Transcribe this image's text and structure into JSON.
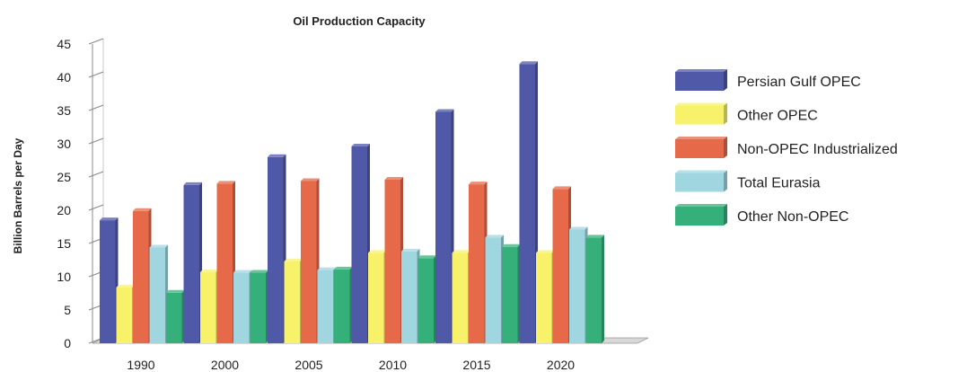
{
  "chart_data": {
    "type": "bar",
    "title": "Oil Production Capacity",
    "xlabel": "",
    "ylabel": "Billion Barrels per Day",
    "categories": [
      "1990",
      "2000",
      "2005",
      "2010",
      "2015",
      "2020"
    ],
    "ylim": [
      0,
      45
    ],
    "yticks": [
      "0",
      "5",
      "10",
      "15",
      "20",
      "25",
      "30",
      "35",
      "40",
      "45"
    ],
    "grid": false,
    "legend_position": "right",
    "series": [
      {
        "name": "Persian Gulf OPEC",
        "color": "#5058a8",
        "values": [
          18.5,
          23.8,
          28.0,
          29.6,
          34.8,
          42.0
        ]
      },
      {
        "name": "Other OPEC",
        "color": "#f7f26a",
        "values": [
          8.4,
          10.7,
          12.3,
          13.6,
          13.6,
          13.6
        ]
      },
      {
        "name": "Non-OPEC Industrialized",
        "color": "#e6694a",
        "values": [
          19.9,
          24.0,
          24.4,
          24.6,
          23.9,
          23.2
        ]
      },
      {
        "name": "Total Eurasia",
        "color": "#9fd6e0",
        "values": [
          14.4,
          10.6,
          11.0,
          13.8,
          15.9,
          17.1
        ]
      },
      {
        "name": "Other Non-OPEC",
        "color": "#35b07a",
        "values": [
          7.6,
          10.6,
          11.1,
          12.8,
          14.5,
          15.9
        ]
      }
    ]
  }
}
